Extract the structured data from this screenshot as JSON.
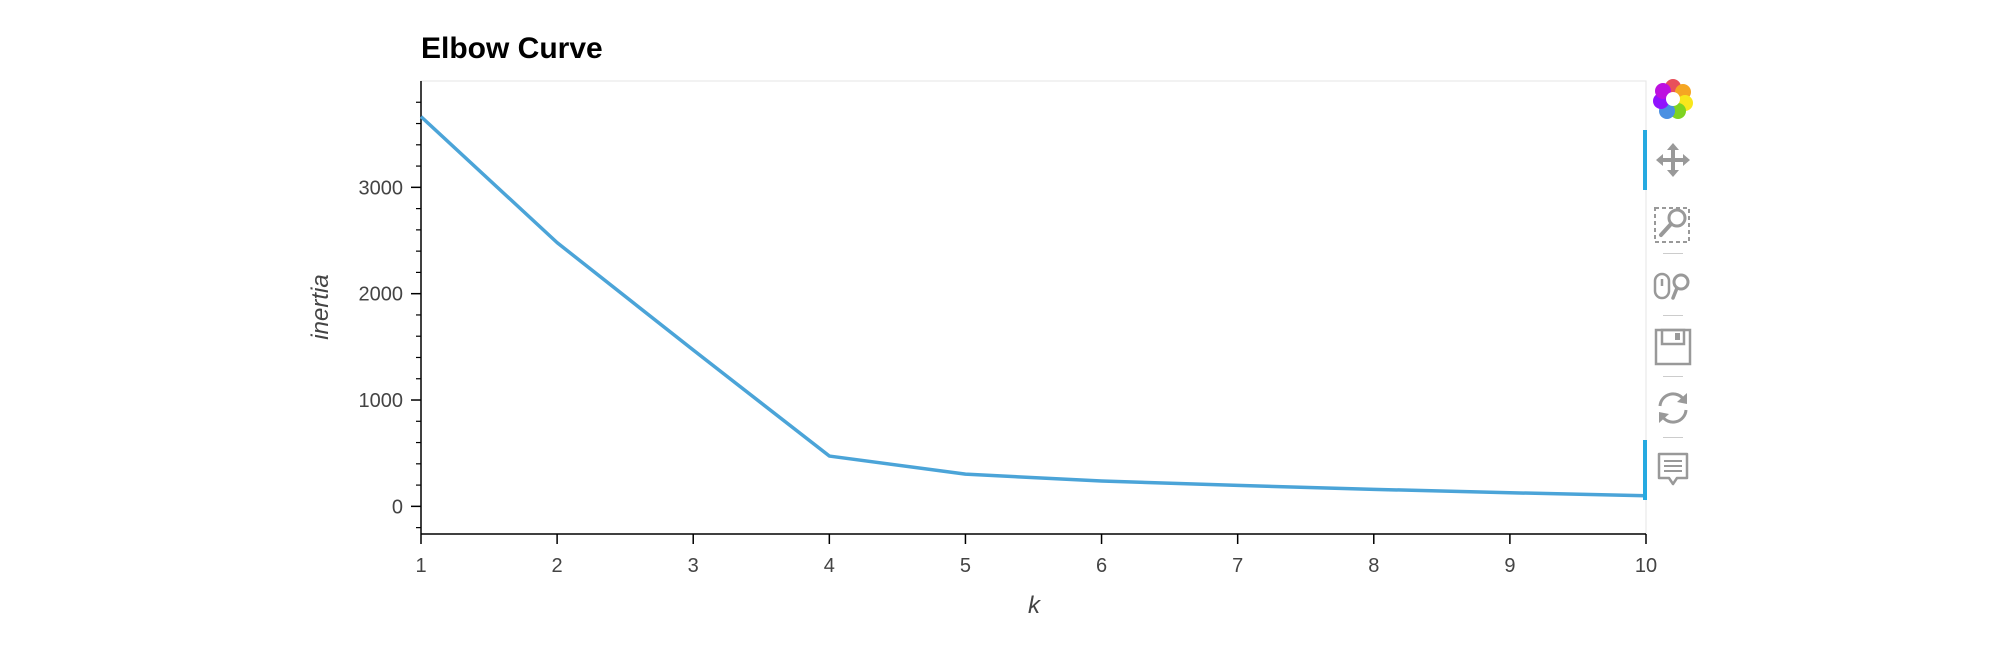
{
  "chart_data": {
    "type": "line",
    "title": "Elbow Curve",
    "xlabel": "k",
    "ylabel": "inertia",
    "x": [
      1,
      2,
      3,
      4,
      5,
      6,
      7,
      8,
      9,
      10
    ],
    "series": [
      {
        "values": [
          3665,
          2480,
          1470,
          473,
          303,
          238,
          197,
          160,
          128,
          100
        ]
      }
    ],
    "xlim": [
      1,
      10
    ],
    "ylim": [
      -260,
      4000
    ],
    "xticks": [
      "1",
      "2",
      "3",
      "4",
      "5",
      "6",
      "7",
      "8",
      "9",
      "10"
    ],
    "yticks": [
      "0",
      "1000",
      "2000",
      "3000"
    ],
    "line_color": "#4ba4d8",
    "grid": false
  },
  "toolbar": {
    "logo_icon": "bokeh-logo-icon",
    "tools": [
      {
        "icon": "pan-icon",
        "active": true
      },
      {
        "icon": "box-zoom-icon",
        "active": false
      },
      {
        "icon": "wheel-zoom-icon",
        "active": false
      },
      {
        "icon": "save-icon",
        "active": false
      },
      {
        "icon": "reset-icon",
        "active": false
      },
      {
        "icon": "hover-icon",
        "active": true
      }
    ],
    "active_color": "#26aae1"
  }
}
